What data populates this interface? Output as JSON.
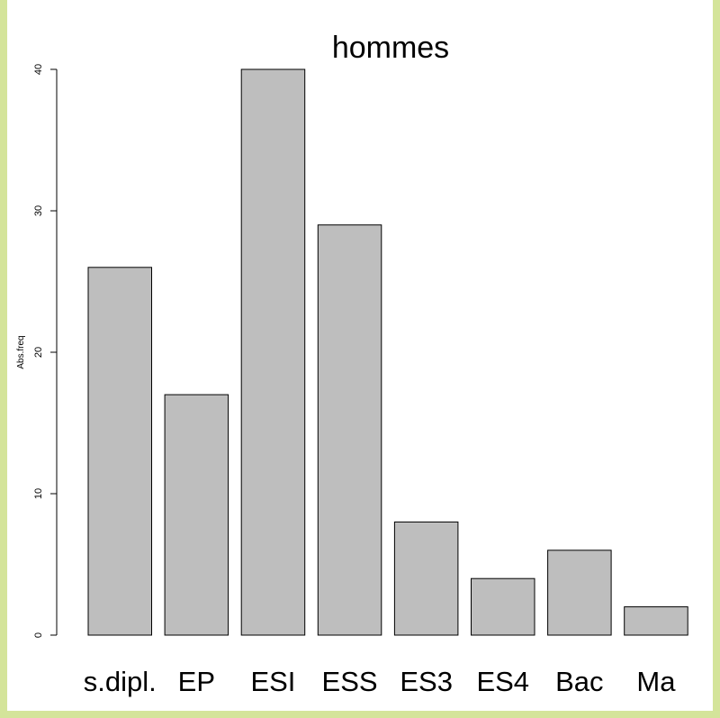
{
  "chart_data": {
    "type": "bar",
    "title": "hommes",
    "xlabel": "",
    "ylabel": "Abs.freq",
    "categories": [
      "s.dipl.",
      "EP",
      "ESI",
      "ESS",
      "ES3",
      "ES4",
      "Bac",
      "Ma"
    ],
    "values": [
      26,
      17,
      40,
      29,
      8,
      4,
      6,
      2
    ],
    "ylim": [
      0,
      40
    ],
    "yticks": [
      "0",
      "10",
      "20",
      "30",
      "40"
    ],
    "grid": false,
    "legend": "none"
  },
  "colors": {
    "bar_fill": "#bebebe",
    "bar_stroke": "#000000",
    "frame_background": "#d4e49a",
    "top_banner_text": "#e8231f"
  }
}
